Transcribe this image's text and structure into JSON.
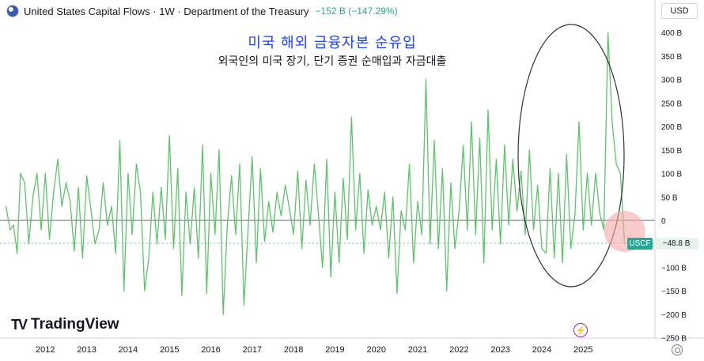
{
  "header": {
    "title": "United States Capital Flows · 1W · Department of the Treasury",
    "change": "−152 B (−147.29%)"
  },
  "currency_button": "USD",
  "annotation": {
    "title": "미국 해외 금융자본 순유입",
    "subtitle": "외국인의 미국 장기, 단기 증권 순매입과 자금대출"
  },
  "logo": {
    "mark": "TV",
    "text": "TradingView"
  },
  "price_tag": {
    "symbol": "USCF",
    "value": "−48.8 B"
  },
  "colors": {
    "series": "#5cc46a",
    "accent": "#22ab94",
    "ellipse": "#333333",
    "highlight": "#f7a8a8",
    "blue_annotation": "#1e40ff"
  },
  "chart_data": {
    "type": "line",
    "x_tick_labels": [
      "2012",
      "2013",
      "2014",
      "2015",
      "2016",
      "2017",
      "2018",
      "2019",
      "2020",
      "2021",
      "2022",
      "2023",
      "2024",
      "2025"
    ],
    "y_tick_labels": [
      "400 B",
      "350 B",
      "300 B",
      "250 B",
      "200 B",
      "150 B",
      "100 B",
      "50 B",
      "0",
      "−50 B",
      "−100 B",
      "−150 B",
      "−200 B",
      "−250 B"
    ],
    "ylim": [
      -250,
      400
    ],
    "xlim": [
      2011.35,
      2027.6
    ],
    "grid": false,
    "series": [
      {
        "name": "USCF",
        "values": [
          [
            2011.4,
            30
          ],
          [
            2011.5,
            -20
          ],
          [
            2011.58,
            -10
          ],
          [
            2011.67,
            -70
          ],
          [
            2011.75,
            100
          ],
          [
            2011.85,
            80
          ],
          [
            2011.95,
            -50
          ],
          [
            2012.05,
            50
          ],
          [
            2012.15,
            100
          ],
          [
            2012.25,
            -20
          ],
          [
            2012.35,
            100
          ],
          [
            2012.45,
            -40
          ],
          [
            2012.55,
            60
          ],
          [
            2012.65,
            130
          ],
          [
            2012.75,
            30
          ],
          [
            2012.85,
            80
          ],
          [
            2012.95,
            40
          ],
          [
            2013.05,
            -65
          ],
          [
            2013.15,
            70
          ],
          [
            2013.25,
            -80
          ],
          [
            2013.35,
            95
          ],
          [
            2013.45,
            25
          ],
          [
            2013.55,
            -50
          ],
          [
            2013.65,
            -20
          ],
          [
            2013.75,
            80
          ],
          [
            2013.85,
            -10
          ],
          [
            2013.95,
            30
          ],
          [
            2014.05,
            -70
          ],
          [
            2014.15,
            170
          ],
          [
            2014.25,
            -150
          ],
          [
            2014.35,
            100
          ],
          [
            2014.45,
            -30
          ],
          [
            2014.55,
            120
          ],
          [
            2014.65,
            60
          ],
          [
            2014.75,
            -150
          ],
          [
            2014.85,
            -80
          ],
          [
            2014.95,
            60
          ],
          [
            2015.05,
            -50
          ],
          [
            2015.15,
            70
          ],
          [
            2015.25,
            -40
          ],
          [
            2015.35,
            180
          ],
          [
            2015.45,
            -60
          ],
          [
            2015.55,
            110
          ],
          [
            2015.65,
            -160
          ],
          [
            2015.75,
            60
          ],
          [
            2015.85,
            -50
          ],
          [
            2015.95,
            70
          ],
          [
            2016.05,
            -80
          ],
          [
            2016.15,
            160
          ],
          [
            2016.25,
            -155
          ],
          [
            2016.35,
            100
          ],
          [
            2016.45,
            -30
          ],
          [
            2016.55,
            150
          ],
          [
            2016.65,
            -200
          ],
          [
            2016.75,
            -10
          ],
          [
            2016.85,
            95
          ],
          [
            2016.95,
            -30
          ],
          [
            2017.05,
            120
          ],
          [
            2017.15,
            -180
          ],
          [
            2017.25,
            -20
          ],
          [
            2017.35,
            135
          ],
          [
            2017.45,
            -90
          ],
          [
            2017.55,
            110
          ],
          [
            2017.65,
            -45
          ],
          [
            2017.75,
            40
          ],
          [
            2017.85,
            -25
          ],
          [
            2017.95,
            60
          ],
          [
            2018.05,
            10
          ],
          [
            2018.15,
            75
          ],
          [
            2018.25,
            25
          ],
          [
            2018.35,
            -30
          ],
          [
            2018.45,
            105
          ],
          [
            2018.55,
            -60
          ],
          [
            2018.65,
            85
          ],
          [
            2018.75,
            -10
          ],
          [
            2018.85,
            120
          ],
          [
            2018.95,
            15
          ],
          [
            2019.05,
            -100
          ],
          [
            2019.15,
            130
          ],
          [
            2019.25,
            -120
          ],
          [
            2019.35,
            60
          ],
          [
            2019.45,
            -90
          ],
          [
            2019.55,
            90
          ],
          [
            2019.65,
            -40
          ],
          [
            2019.75,
            220
          ],
          [
            2019.85,
            -20
          ],
          [
            2019.95,
            100
          ],
          [
            2020.05,
            -70
          ],
          [
            2020.15,
            65
          ],
          [
            2020.25,
            -10
          ],
          [
            2020.35,
            30
          ],
          [
            2020.45,
            -20
          ],
          [
            2020.55,
            60
          ],
          [
            2020.65,
            -80
          ],
          [
            2020.75,
            50
          ],
          [
            2020.85,
            -155
          ],
          [
            2020.95,
            20
          ],
          [
            2021.05,
            -20
          ],
          [
            2021.15,
            120
          ],
          [
            2021.25,
            -90
          ],
          [
            2021.35,
            40
          ],
          [
            2021.45,
            -30
          ],
          [
            2021.55,
            300
          ],
          [
            2021.65,
            -50
          ],
          [
            2021.75,
            170
          ],
          [
            2021.85,
            -60
          ],
          [
            2021.95,
            110
          ],
          [
            2022.05,
            -150
          ],
          [
            2022.15,
            80
          ],
          [
            2022.25,
            -60
          ],
          [
            2022.35,
            20
          ],
          [
            2022.45,
            160
          ],
          [
            2022.55,
            -20
          ],
          [
            2022.65,
            210
          ],
          [
            2022.75,
            -30
          ],
          [
            2022.85,
            175
          ],
          [
            2022.95,
            -90
          ],
          [
            2023.05,
            235
          ],
          [
            2023.15,
            -20
          ],
          [
            2023.25,
            130
          ],
          [
            2023.35,
            -50
          ],
          [
            2023.45,
            160
          ],
          [
            2023.55,
            -10
          ],
          [
            2023.65,
            130
          ],
          [
            2023.75,
            20
          ],
          [
            2023.85,
            105
          ],
          [
            2023.95,
            -30
          ],
          [
            2024.05,
            150
          ],
          [
            2024.15,
            -20
          ],
          [
            2024.25,
            75
          ],
          [
            2024.35,
            -60
          ],
          [
            2024.45,
            -70
          ],
          [
            2024.55,
            110
          ],
          [
            2024.65,
            -80
          ],
          [
            2024.75,
            100
          ],
          [
            2024.85,
            -90
          ],
          [
            2024.95,
            140
          ],
          [
            2025.05,
            -60
          ],
          [
            2025.15,
            10
          ],
          [
            2025.25,
            210
          ],
          [
            2025.35,
            -20
          ],
          [
            2025.45,
            100
          ],
          [
            2025.55,
            -10
          ],
          [
            2025.65,
            100
          ],
          [
            2025.75,
            15
          ],
          [
            2025.85,
            -20
          ],
          [
            2025.95,
            400
          ],
          [
            2026.05,
            210
          ],
          [
            2026.15,
            120
          ],
          [
            2026.25,
            100
          ],
          [
            2026.35,
            -48.8
          ]
        ]
      }
    ],
    "annotations": [
      {
        "type": "ellipse",
        "note": "recent spike region"
      },
      {
        "type": "circle",
        "note": "latest value"
      }
    ]
  }
}
